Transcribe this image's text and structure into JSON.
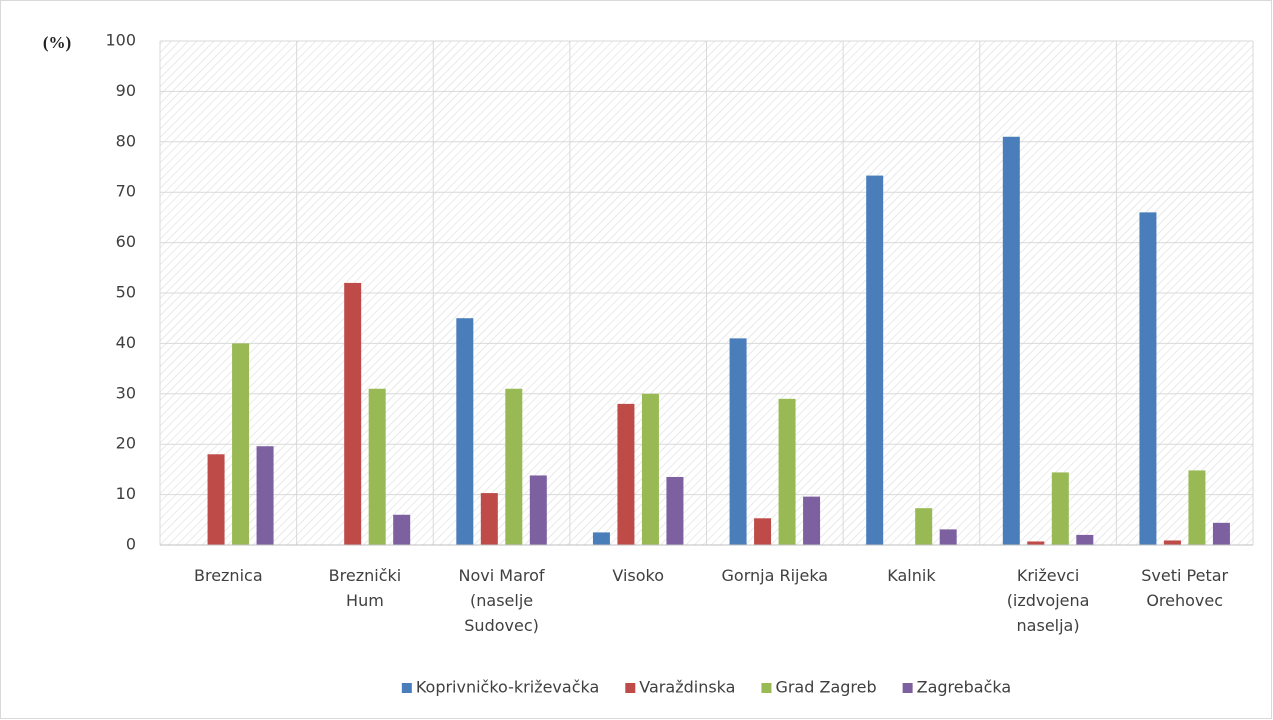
{
  "chart_data": {
    "type": "bar",
    "ylabel": "(%)",
    "categories": [
      "Breznica",
      "Breznički\nHum",
      "Novi Marof\n(naselje\nSudovec)",
      "Visoko",
      "Gornja Rijeka",
      "Kalnik",
      "Križevci\n(izdvojena\nnaselja)",
      "Sveti Petar\nOrehovec"
    ],
    "series": [
      {
        "name": "Koprivničko-križevačka",
        "color": "#4a7ebb",
        "values": [
          0,
          0,
          45,
          2.5,
          41,
          73.3,
          81,
          66
        ]
      },
      {
        "name": "Varaždinska",
        "color": "#be4b48",
        "values": [
          18,
          52,
          10.3,
          28,
          5.3,
          0,
          0.7,
          0.9
        ]
      },
      {
        "name": "Grad Zagreb",
        "color": "#98b954",
        "values": [
          40,
          31,
          31,
          30,
          29,
          7.3,
          14.4,
          14.8
        ]
      },
      {
        "name": "Zagrebačka",
        "color": "#7d60a0",
        "values": [
          19.6,
          6,
          13.8,
          13.5,
          9.6,
          3.1,
          2,
          4.4
        ]
      }
    ],
    "ylim": [
      0,
      100
    ],
    "yticks": [
      0,
      10,
      20,
      30,
      40,
      50,
      60,
      70,
      80,
      90,
      100
    ],
    "grid": true,
    "legend": "bottom"
  }
}
